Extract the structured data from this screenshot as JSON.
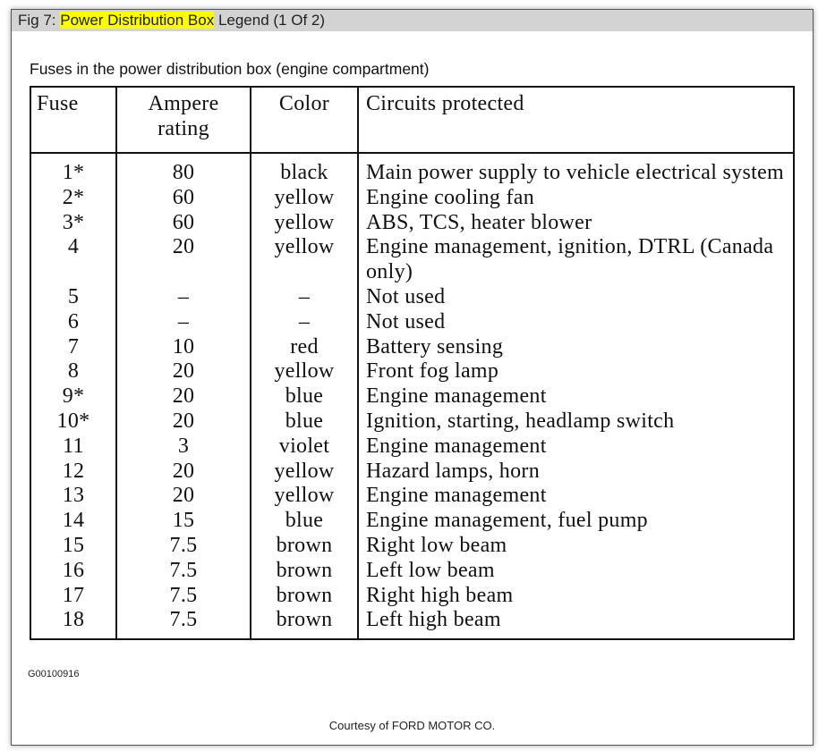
{
  "title": {
    "prefix": "Fig 7: ",
    "highlight": "Power Distribution Box",
    "suffix": " Legend (1 Of 2)"
  },
  "caption": "Fuses in the power distribution box (engine compartment)",
  "table": {
    "headers": [
      "Fuse",
      "Ampere rating",
      "Color",
      "Circuits protected"
    ],
    "rows": [
      [
        "1*",
        "80",
        "black",
        "Main power supply to vehicle electrical system"
      ],
      [
        "2*",
        "60",
        "yellow",
        "Engine cooling fan"
      ],
      [
        "3*",
        "60",
        "yellow",
        "ABS, TCS, heater blower"
      ],
      [
        "4",
        "20",
        "yellow",
        "Engine management, ignition, DTRL (Canada only)"
      ],
      [
        "5",
        "–",
        "–",
        "Not used"
      ],
      [
        "6",
        "–",
        "–",
        "Not used"
      ],
      [
        "7",
        "10",
        "red",
        "Battery sensing"
      ],
      [
        "8",
        "20",
        "yellow",
        "Front fog lamp"
      ],
      [
        "9*",
        "20",
        "blue",
        "Engine management"
      ],
      [
        "10*",
        "20",
        "blue",
        "Ignition, starting, headlamp switch"
      ],
      [
        "11",
        "3",
        "violet",
        "Engine management"
      ],
      [
        "12",
        "20",
        "yellow",
        "Hazard lamps, horn"
      ],
      [
        "13",
        "20",
        "yellow",
        "Engine management"
      ],
      [
        "14",
        "15",
        "blue",
        "Engine management, fuel pump"
      ],
      [
        "15",
        "7.5",
        "brown",
        "Right low beam"
      ],
      [
        "16",
        "7.5",
        "brown",
        "Left low beam"
      ],
      [
        "17",
        "7.5",
        "brown",
        "Right high beam"
      ],
      [
        "18",
        "7.5",
        "brown",
        "Left high beam"
      ]
    ]
  },
  "figure_id": "G00100916",
  "courtesy": "Courtesy of FORD MOTOR CO.",
  "colors": {
    "title_bar": "#d3d3d3",
    "highlight": "#ffff00"
  }
}
